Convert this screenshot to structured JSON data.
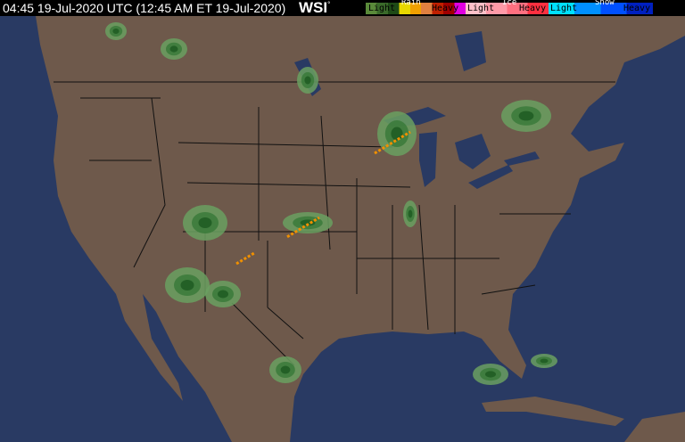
{
  "header": {
    "timestamp": "04:45 19-Jul-2020 UTC  (12:45 AM ET 19-Jul-2020)",
    "logo": "WSI",
    "legend": {
      "rain": {
        "title": "Rain",
        "light": "Light",
        "heavy": "Heavy",
        "colors": [
          "#5a8a3a",
          "#3a6a2a",
          "#1e4a16",
          "#e8d800",
          "#f0a000",
          "#e08040",
          "#c02000",
          "#a00000",
          "#e000e0"
        ]
      },
      "ice": {
        "title": "Ice",
        "light": "Light",
        "heavy": "Heavy",
        "colors": [
          "#ffc0c8",
          "#ff9aa8",
          "#ff7080",
          "#ff3040"
        ]
      },
      "snow": {
        "title": "Snow",
        "light": "Light",
        "heavy": "Heavy",
        "colors": [
          "#00e0ff",
          "#0090ff",
          "#0050ff",
          "#0020c0"
        ]
      }
    }
  },
  "map": {
    "ocean": "#293a63",
    "land": "#6e594b",
    "lakes": "#293a63",
    "border": "#111111",
    "radar": [
      "#6aa060",
      "#3a7a3a",
      "#1f5a22",
      "#e8d800",
      "#f09000"
    ]
  }
}
